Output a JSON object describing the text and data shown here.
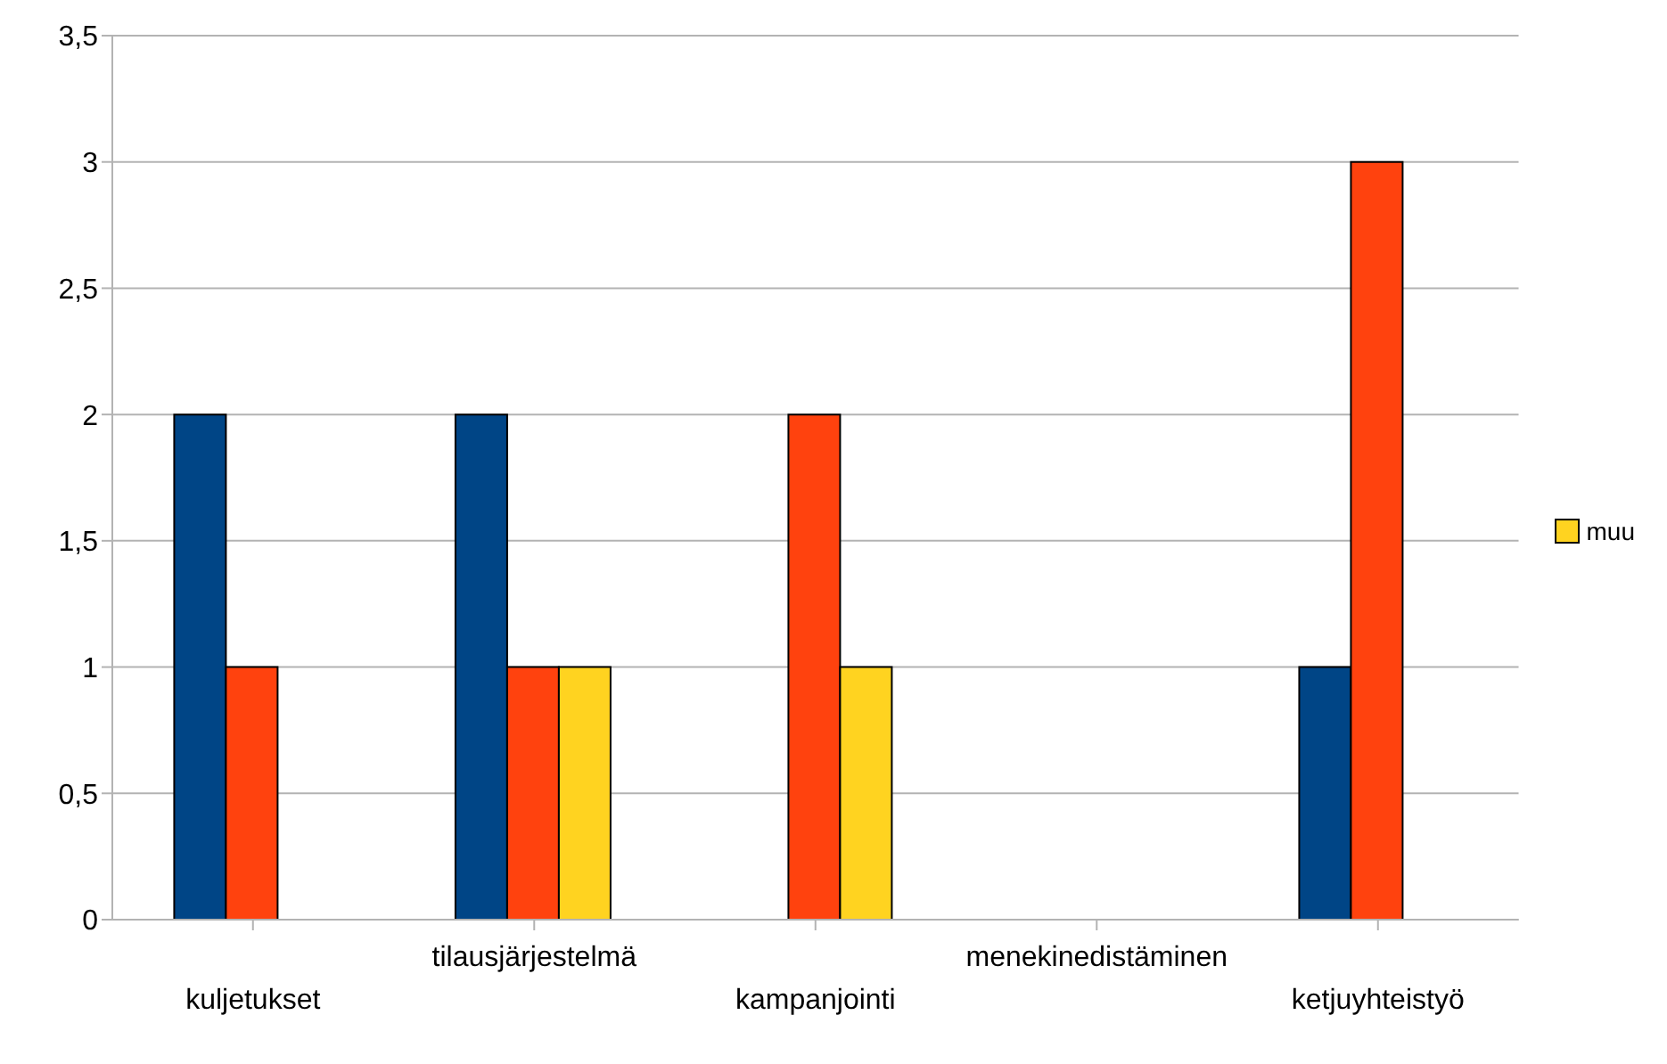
{
  "chart_data": {
    "type": "bar",
    "categories": [
      "kuljetukset",
      "tilausjärjestelmä",
      "kampanjointi",
      "menekinedistäminen",
      "ketjuyhteistyö"
    ],
    "series": [
      {
        "color": "#004586",
        "values": [
          2,
          2,
          null,
          null,
          1
        ]
      },
      {
        "color": "#ff420e",
        "values": [
          1,
          1,
          2,
          null,
          3
        ]
      },
      {
        "name": "muu",
        "color": "#ffd320",
        "values": [
          null,
          1,
          1,
          null,
          null
        ]
      }
    ],
    "ylim": [
      0,
      3.5
    ],
    "yticks": [
      0,
      {
        "value": 0.5,
        "label": "0,5"
      },
      1,
      {
        "value": 1.5,
        "label": "1,5"
      },
      2,
      {
        "value": 2.5,
        "label": "2,5"
      },
      3,
      {
        "value": 3.5,
        "label": "3,5"
      }
    ],
    "grid": "y",
    "legend": "right"
  }
}
